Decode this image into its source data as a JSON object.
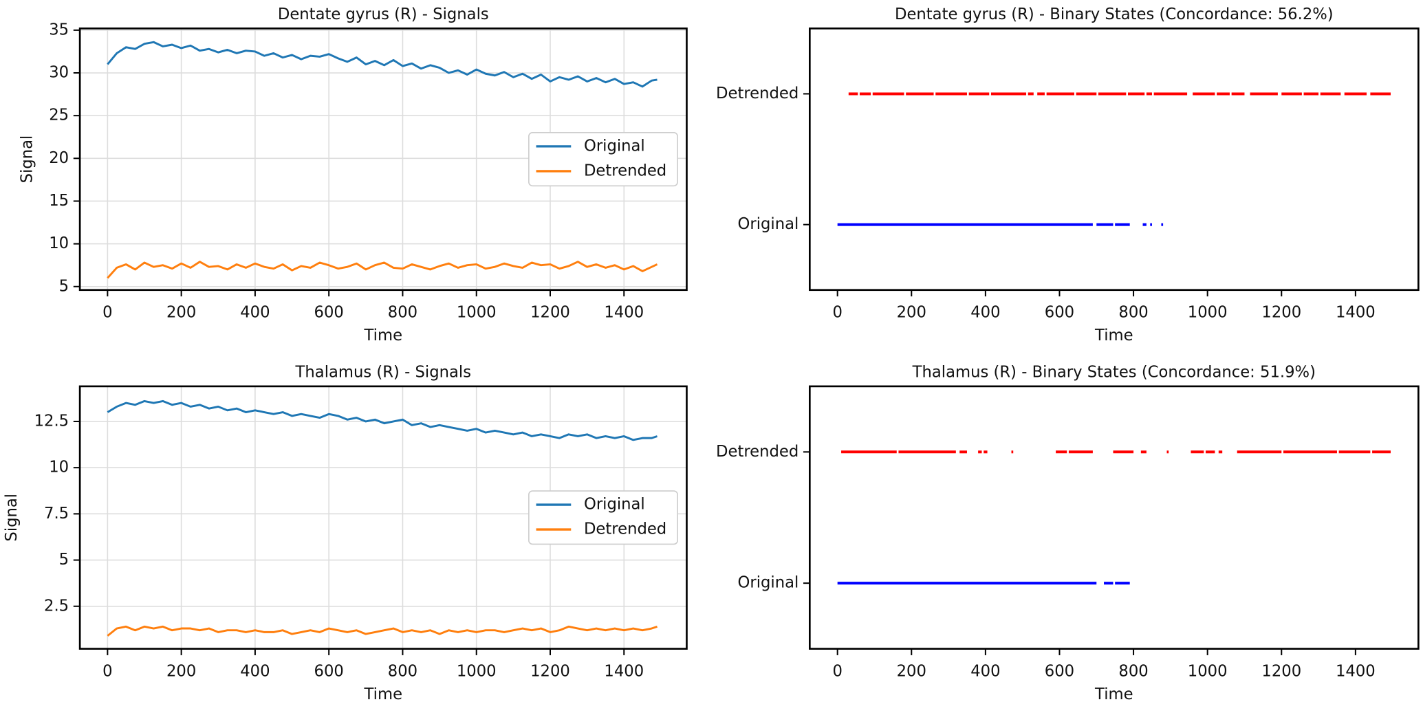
{
  "chart_data": [
    {
      "type": "line",
      "title": "Dentate gyrus (R) - Signals",
      "xlabel": "Time",
      "ylabel": "Signal",
      "xlim": [
        -75,
        1570
      ],
      "xticks": [
        0,
        200,
        400,
        600,
        800,
        1000,
        1200,
        1400
      ],
      "ylim": [
        4.6,
        35.2
      ],
      "yticks": [
        5,
        10,
        15,
        20,
        25,
        30,
        35
      ],
      "grid": true,
      "legend": "center right",
      "x": [
        0,
        25,
        50,
        75,
        100,
        125,
        150,
        175,
        200,
        225,
        250,
        275,
        300,
        325,
        350,
        375,
        400,
        425,
        450,
        475,
        500,
        525,
        550,
        575,
        600,
        625,
        650,
        675,
        700,
        725,
        750,
        775,
        800,
        825,
        850,
        875,
        900,
        925,
        950,
        975,
        1000,
        1025,
        1050,
        1075,
        1100,
        1125,
        1150,
        1175,
        1200,
        1225,
        1250,
        1275,
        1300,
        1325,
        1350,
        1375,
        1400,
        1425,
        1450,
        1475,
        1490
      ],
      "series": [
        {
          "name": "Original",
          "color": "#1f77b4",
          "values": [
            31.0,
            32.3,
            33.0,
            32.8,
            33.4,
            33.6,
            33.1,
            33.3,
            32.9,
            33.2,
            32.6,
            32.8,
            32.4,
            32.7,
            32.3,
            32.6,
            32.5,
            32.0,
            32.3,
            31.8,
            32.1,
            31.6,
            32.0,
            31.9,
            32.2,
            31.7,
            31.3,
            31.8,
            31.0,
            31.4,
            30.9,
            31.5,
            30.8,
            31.1,
            30.5,
            30.9,
            30.6,
            30.0,
            30.3,
            29.8,
            30.4,
            29.9,
            29.7,
            30.1,
            29.5,
            29.9,
            29.3,
            29.8,
            29.0,
            29.5,
            29.2,
            29.6,
            29.0,
            29.4,
            28.9,
            29.3,
            28.7,
            28.9,
            28.4,
            29.1,
            29.2
          ]
        },
        {
          "name": "Detrended",
          "color": "#ff7f0e",
          "values": [
            6.0,
            7.2,
            7.6,
            7.0,
            7.8,
            7.3,
            7.5,
            7.1,
            7.7,
            7.2,
            7.9,
            7.3,
            7.4,
            7.0,
            7.6,
            7.2,
            7.7,
            7.3,
            7.1,
            7.6,
            6.9,
            7.4,
            7.2,
            7.8,
            7.5,
            7.1,
            7.3,
            7.7,
            7.0,
            7.5,
            7.8,
            7.2,
            7.1,
            7.6,
            7.3,
            7.0,
            7.4,
            7.7,
            7.2,
            7.5,
            7.6,
            7.1,
            7.3,
            7.7,
            7.4,
            7.2,
            7.8,
            7.5,
            7.6,
            7.1,
            7.4,
            7.9,
            7.3,
            7.6,
            7.2,
            7.5,
            7.0,
            7.4,
            6.8,
            7.3,
            7.6
          ]
        }
      ]
    },
    {
      "type": "binary",
      "title": "Dentate gyrus (R) - Binary States (Concordance: 56.2%)",
      "xlabel": "Time",
      "xlim": [
        -75,
        1570
      ],
      "xticks": [
        0,
        200,
        400,
        600,
        800,
        1000,
        1200,
        1400
      ],
      "ylim": [
        -0.5,
        1.5
      ],
      "yticks": [
        {
          "value": 0,
          "label": "Original"
        },
        {
          "value": 1,
          "label": "Detrended"
        }
      ],
      "grid": false,
      "series": [
        {
          "color": "#0000ff",
          "level": 0,
          "intervals": [
            [
              0,
              690
            ],
            [
              700,
              745
            ],
            [
              750,
              790
            ],
            [
              825,
              835
            ],
            [
              845,
              850
            ],
            [
              875,
              880
            ]
          ]
        },
        {
          "color": "#ff0000",
          "level": 1,
          "intervals": [
            [
              30,
              55
            ],
            [
              60,
              90
            ],
            [
              95,
              180
            ],
            [
              185,
              260
            ],
            [
              265,
              350
            ],
            [
              355,
              410
            ],
            [
              415,
              510
            ],
            [
              515,
              530
            ],
            [
              540,
              560
            ],
            [
              565,
              640
            ],
            [
              645,
              700
            ],
            [
              705,
              780
            ],
            [
              785,
              830
            ],
            [
              835,
              850
            ],
            [
              855,
              945
            ],
            [
              960,
              1020
            ],
            [
              1025,
              1060
            ],
            [
              1065,
              1100
            ],
            [
              1115,
              1190
            ],
            [
              1200,
              1255
            ],
            [
              1260,
              1300
            ],
            [
              1305,
              1360
            ],
            [
              1370,
              1430
            ],
            [
              1440,
              1495
            ]
          ]
        }
      ]
    },
    {
      "type": "line",
      "title": "Thalamus (R) - Signals",
      "xlabel": "Time",
      "ylabel": "Signal",
      "xlim": [
        -75,
        1570
      ],
      "xticks": [
        0,
        200,
        400,
        600,
        800,
        1000,
        1200,
        1400
      ],
      "ylim": [
        0.2,
        14.4
      ],
      "yticks": [
        2.5,
        5.0,
        7.5,
        10.0,
        12.5
      ],
      "grid": true,
      "legend": "center right",
      "x": [
        0,
        25,
        50,
        75,
        100,
        125,
        150,
        175,
        200,
        225,
        250,
        275,
        300,
        325,
        350,
        375,
        400,
        425,
        450,
        475,
        500,
        525,
        550,
        575,
        600,
        625,
        650,
        675,
        700,
        725,
        750,
        775,
        800,
        825,
        850,
        875,
        900,
        925,
        950,
        975,
        1000,
        1025,
        1050,
        1075,
        1100,
        1125,
        1150,
        1175,
        1200,
        1225,
        1250,
        1275,
        1300,
        1325,
        1350,
        1375,
        1400,
        1425,
        1450,
        1475,
        1490
      ],
      "series": [
        {
          "name": "Original",
          "color": "#1f77b4",
          "values": [
            13.0,
            13.3,
            13.5,
            13.4,
            13.6,
            13.5,
            13.6,
            13.4,
            13.5,
            13.3,
            13.4,
            13.2,
            13.3,
            13.1,
            13.2,
            13.0,
            13.1,
            13.0,
            12.9,
            13.0,
            12.8,
            12.9,
            12.8,
            12.7,
            12.9,
            12.8,
            12.6,
            12.7,
            12.5,
            12.6,
            12.4,
            12.5,
            12.6,
            12.3,
            12.4,
            12.2,
            12.3,
            12.2,
            12.1,
            12.0,
            12.1,
            11.9,
            12.0,
            11.9,
            11.8,
            11.9,
            11.7,
            11.8,
            11.7,
            11.6,
            11.8,
            11.7,
            11.8,
            11.6,
            11.7,
            11.6,
            11.7,
            11.5,
            11.6,
            11.6,
            11.7
          ]
        },
        {
          "name": "Detrended",
          "color": "#ff7f0e",
          "values": [
            0.9,
            1.3,
            1.4,
            1.2,
            1.4,
            1.3,
            1.4,
            1.2,
            1.3,
            1.3,
            1.2,
            1.3,
            1.1,
            1.2,
            1.2,
            1.1,
            1.2,
            1.1,
            1.1,
            1.2,
            1.0,
            1.1,
            1.2,
            1.1,
            1.3,
            1.2,
            1.1,
            1.2,
            1.0,
            1.1,
            1.2,
            1.3,
            1.1,
            1.2,
            1.1,
            1.2,
            1.0,
            1.2,
            1.1,
            1.2,
            1.1,
            1.2,
            1.2,
            1.1,
            1.2,
            1.3,
            1.2,
            1.3,
            1.1,
            1.2,
            1.4,
            1.3,
            1.2,
            1.3,
            1.2,
            1.3,
            1.2,
            1.3,
            1.2,
            1.3,
            1.4
          ]
        }
      ]
    },
    {
      "type": "binary",
      "title": "Thalamus (R) - Binary States (Concordance: 51.9%)",
      "xlabel": "Time",
      "xlim": [
        -75,
        1570
      ],
      "xticks": [
        0,
        200,
        400,
        600,
        800,
        1000,
        1200,
        1400
      ],
      "ylim": [
        -0.5,
        1.5
      ],
      "yticks": [
        {
          "value": 0,
          "label": "Original"
        },
        {
          "value": 1,
          "label": "Detrended"
        }
      ],
      "grid": false,
      "series": [
        {
          "color": "#0000ff",
          "level": 0,
          "intervals": [
            [
              0,
              700
            ],
            [
              720,
              745
            ],
            [
              750,
              790
            ]
          ]
        },
        {
          "color": "#ff0000",
          "level": 1,
          "intervals": [
            [
              10,
              160
            ],
            [
              165,
              320
            ],
            [
              330,
              350
            ],
            [
              380,
              390
            ],
            [
              395,
              405
            ],
            [
              470,
              475
            ],
            [
              590,
              620
            ],
            [
              625,
              690
            ],
            [
              745,
              800
            ],
            [
              820,
              835
            ],
            [
              890,
              895
            ],
            [
              955,
              990
            ],
            [
              995,
              1020
            ],
            [
              1030,
              1040
            ],
            [
              1080,
              1200
            ],
            [
              1205,
              1350
            ],
            [
              1355,
              1440
            ],
            [
              1445,
              1495
            ]
          ]
        }
      ]
    }
  ]
}
